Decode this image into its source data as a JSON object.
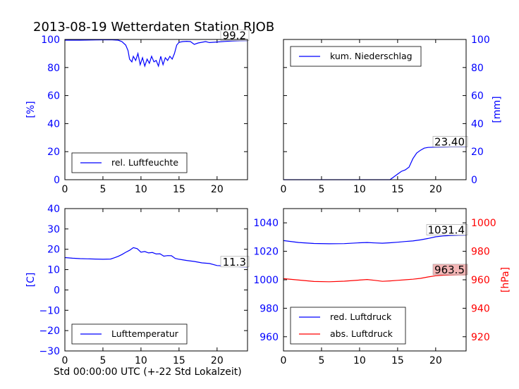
{
  "title": "2013-08-19 Wetterdaten Station RJOB",
  "xlabel": "Std 00:00:00 UTC (+-22 Std Lokalzeit)",
  "colors": {
    "blue": "#0000ff",
    "red": "#ff0000"
  },
  "chart_data": [
    {
      "type": "line",
      "panel": "top-left",
      "ylabel": "[%]",
      "xlim": [
        0,
        24
      ],
      "ylim": [
        0,
        100
      ],
      "xticks": [
        0,
        5,
        10,
        15,
        20
      ],
      "yticks": [
        0,
        20,
        40,
        60,
        80,
        100
      ],
      "legend": {
        "position": "lower-left"
      },
      "annotation": "99.2",
      "series": [
        {
          "name": "rel. Luftfeuchte",
          "color": "#0000ff",
          "x": [
            0,
            2,
            4,
            6,
            7,
            7.5,
            8,
            8.3,
            8.5,
            8.8,
            9,
            9.3,
            9.6,
            9.9,
            10.2,
            10.5,
            10.8,
            11.1,
            11.4,
            11.7,
            12,
            12.3,
            12.6,
            12.9,
            13.2,
            13.5,
            13.8,
            14.1,
            14.4,
            14.7,
            15,
            15.5,
            16,
            16.5,
            17,
            17.5,
            18,
            18.5,
            19,
            20,
            21,
            22,
            23,
            24
          ],
          "y": [
            99.5,
            99.5,
            99.7,
            99.8,
            99.5,
            98.5,
            96,
            92,
            86,
            84,
            88,
            85,
            90,
            82,
            87,
            81,
            86,
            83,
            88,
            84,
            85,
            81,
            88,
            82,
            87,
            85,
            88,
            86,
            90,
            96,
            98,
            98.5,
            98.7,
            98.5,
            96.5,
            97.5,
            98,
            98.5,
            97.8,
            98.2,
            98.6,
            98.9,
            99.1,
            99.2
          ]
        }
      ]
    },
    {
      "type": "line",
      "panel": "top-right",
      "ylabel": "[mm]",
      "xlim": [
        0,
        24
      ],
      "ylim": [
        0,
        100
      ],
      "xticks": [
        0,
        5,
        10,
        15,
        20
      ],
      "yticks": [
        0,
        20,
        40,
        60,
        80,
        100
      ],
      "legend": {
        "position": "upper-left"
      },
      "annotation": "23.40",
      "series": [
        {
          "name": "kum. Niederschlag",
          "color": "#0000ff",
          "x": [
            0,
            5,
            10,
            14,
            14.5,
            15,
            15.5,
            16,
            16.5,
            17,
            17.5,
            18,
            18.5,
            19,
            20,
            21,
            22,
            23,
            24
          ],
          "y": [
            0,
            0,
            0,
            0,
            2,
            4,
            6,
            7,
            9,
            15,
            19,
            21,
            22.5,
            23,
            23.2,
            23.3,
            23.4,
            23.4,
            23.4
          ]
        }
      ]
    },
    {
      "type": "line",
      "panel": "bottom-left",
      "ylabel": "[C]",
      "xlim": [
        0,
        24
      ],
      "ylim": [
        -30,
        40
      ],
      "xticks": [
        0,
        5,
        10,
        15,
        20
      ],
      "yticks": [
        -30,
        -20,
        -10,
        0,
        10,
        20,
        30,
        40
      ],
      "legend": {
        "position": "lower-left"
      },
      "annotation": "11.3",
      "series": [
        {
          "name": "Lufttemperatur",
          "color": "#0000ff",
          "x": [
            0,
            1,
            2,
            3,
            4,
            5,
            6,
            6.5,
            7,
            7.5,
            8,
            8.5,
            9,
            9.5,
            10,
            10.5,
            11,
            11.5,
            12,
            12.5,
            13,
            13.5,
            14,
            14.5,
            15,
            16,
            17,
            18,
            19,
            20,
            21,
            22,
            23,
            24
          ],
          "y": [
            15.9,
            15.6,
            15.4,
            15.3,
            15.2,
            15.1,
            15.2,
            15.8,
            16.5,
            17.4,
            18.5,
            19.5,
            20.8,
            20.3,
            18.6,
            18.9,
            18.2,
            18.4,
            17.7,
            17.8,
            16.6,
            16.9,
            16.8,
            15.5,
            15.1,
            14.5,
            14.0,
            13.3,
            13.0,
            12.0,
            11.8,
            11.6,
            11.4,
            11.3
          ]
        }
      ]
    },
    {
      "type": "line",
      "panel": "bottom-right",
      "ylabel": "[hPa]",
      "xlim": [
        0,
        24
      ],
      "ylim_left": [
        950,
        1050
      ],
      "ylim_right": [
        910,
        1010
      ],
      "xticks": [
        0,
        5,
        10,
        15,
        20
      ],
      "yticks_left": [
        960,
        980,
        1000,
        1020,
        1040
      ],
      "yticks_right": [
        920,
        940,
        960,
        980,
        1000
      ],
      "legend": {
        "position": "lower-left"
      },
      "annotations": [
        "1031.4",
        "963.5"
      ],
      "series": [
        {
          "name": "red. Luftdruck",
          "color": "#0000ff",
          "axis": "left",
          "x": [
            0,
            2,
            4,
            6,
            8,
            10,
            11,
            12,
            13,
            14,
            15,
            16,
            17,
            18,
            19,
            20,
            21,
            22,
            23,
            24
          ],
          "y": [
            1027.5,
            1026.2,
            1025.5,
            1025.3,
            1025.4,
            1026.0,
            1026.2,
            1025.9,
            1025.7,
            1026.0,
            1026.4,
            1026.9,
            1027.3,
            1028.0,
            1029.0,
            1030.2,
            1030.8,
            1031.1,
            1031.3,
            1031.4
          ]
        },
        {
          "name": "abs. Luftdruck",
          "color": "#ff0000",
          "axis": "right",
          "x": [
            0,
            2,
            4,
            6,
            8,
            10,
            11,
            12,
            13,
            14,
            15,
            16,
            17,
            18,
            19,
            20,
            21,
            22,
            23,
            24
          ],
          "y": [
            960.8,
            959.8,
            958.8,
            958.6,
            959.0,
            959.8,
            960.2,
            959.6,
            958.9,
            959.2,
            959.6,
            960.0,
            960.4,
            961.0,
            962.0,
            962.8,
            963.2,
            963.4,
            963.5,
            963.5
          ]
        }
      ]
    }
  ]
}
